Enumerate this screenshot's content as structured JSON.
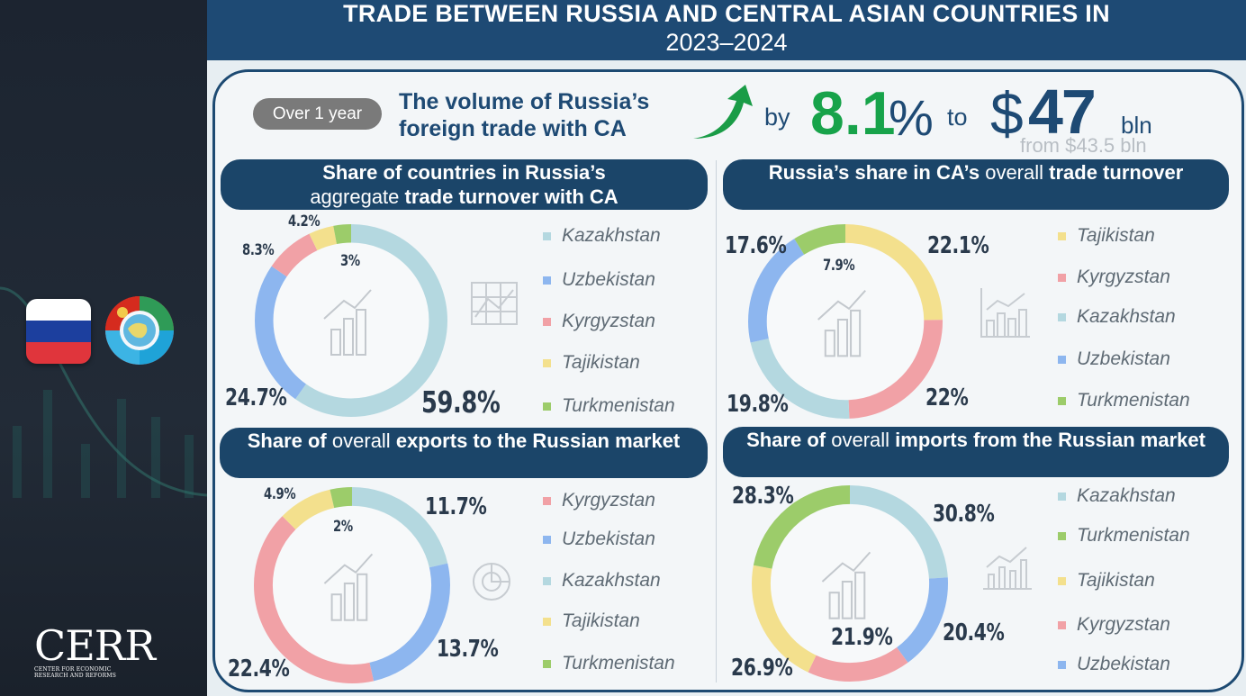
{
  "header": {
    "title_line1": "TRADE BETWEEN RUSSIA AND CENTRAL ASIAN COUNTRIES IN",
    "title_line2": "2023–2024"
  },
  "summary": {
    "period_pill": "Over 1 year",
    "headline_line1": "The volume of Russia’s",
    "headline_line2": "foreign trade with CA",
    "by": "by",
    "growth_value": "8.1",
    "growth_unit": "%",
    "to": "to",
    "currency": "$",
    "amount": "47",
    "amount_unit": "bln",
    "from_text": "from $43.5 bln"
  },
  "logo": {
    "text": "CERR",
    "sub_line1": "CENTER FOR ECONOMIC",
    "sub_line2": "RESEARCH AND REFORMS"
  },
  "colors": {
    "Kazakhstan": "#b4d8e0",
    "Uzbekistan": "#8db6ef",
    "Kyrgyzstan": "#f1a1a6",
    "Tajikistan": "#f3e08d",
    "Turkmenistan": "#9ccc6a",
    "header_bg": "#1e4a74",
    "green_accent": "#17a34a"
  },
  "chart_data": [
    {
      "type": "pie",
      "title_parts": [
        "Share of countries in Russia’s",
        "aggregate",
        "trade turnover with CA"
      ],
      "legend": [
        "Kazakhstan",
        "Uzbekistan",
        "Kyrgyzstan",
        "Tajikistan",
        "Turkmenistan"
      ],
      "slices": [
        {
          "name": "Kazakhstan",
          "value": 59.8,
          "label": "59.8%"
        },
        {
          "name": "Uzbekistan",
          "value": 24.7,
          "label": "24.7%"
        },
        {
          "name": "Kyrgyzstan",
          "value": 8.3,
          "label": "8.3%"
        },
        {
          "name": "Tajikistan",
          "value": 4.2,
          "label": "4.2%"
        },
        {
          "name": "Turkmenistan",
          "value": 3,
          "label": "3%"
        }
      ]
    },
    {
      "type": "pie",
      "title_parts": [
        "Russia’s share in CA’s",
        "overall",
        "trade turnover"
      ],
      "legend": [
        "Tajikistan",
        "Kyrgyzstan",
        "Kazakhstan",
        "Uzbekistan",
        "Turkmenistan"
      ],
      "slices": [
        {
          "name": "Tajikistan",
          "value": 22.1,
          "label": "22.1%"
        },
        {
          "name": "Kyrgyzstan",
          "value": 22,
          "label": "22%"
        },
        {
          "name": "Kazakhstan",
          "value": 19.8,
          "label": "19.8%"
        },
        {
          "name": "Uzbekistan",
          "value": 17.6,
          "label": "17.6%"
        },
        {
          "name": "Turkmenistan",
          "value": 7.9,
          "label": "7.9%"
        }
      ]
    },
    {
      "type": "pie",
      "title_parts": [
        "Share of",
        "overall",
        "exports to the Russian market"
      ],
      "legend": [
        "Kyrgyzstan",
        "Uzbekistan",
        "Kazakhstan",
        "Tajikistan",
        "Turkmenistan"
      ],
      "slices": [
        {
          "name": "Kazakhstan",
          "value": 11.7,
          "label": "11.7%"
        },
        {
          "name": "Uzbekistan",
          "value": 13.7,
          "label": "13.7%"
        },
        {
          "name": "Kyrgyzstan",
          "value": 22.4,
          "label": "22.4%"
        },
        {
          "name": "Tajikistan",
          "value": 4.9,
          "label": "4.9%"
        },
        {
          "name": "Turkmenistan",
          "value": 2,
          "label": "2%"
        }
      ]
    },
    {
      "type": "pie",
      "title_parts": [
        "Share of",
        "overall",
        "imports from the Russian market"
      ],
      "legend": [
        "Kazakhstan",
        "Turkmenistan",
        "Tajikistan",
        "Kyrgyzstan",
        "Uzbekistan"
      ],
      "slices": [
        {
          "name": "Kazakhstan",
          "value": 30.8,
          "label": "30.8%"
        },
        {
          "name": "Uzbekistan",
          "value": 20.4,
          "label": "20.4%"
        },
        {
          "name": "Kyrgyzstan",
          "value": 21.9,
          "label": "21.9%"
        },
        {
          "name": "Tajikistan",
          "value": 26.9,
          "label": "26.9%"
        },
        {
          "name": "Turkmenistan",
          "value": 28.3,
          "label": "28.3%"
        }
      ]
    }
  ]
}
